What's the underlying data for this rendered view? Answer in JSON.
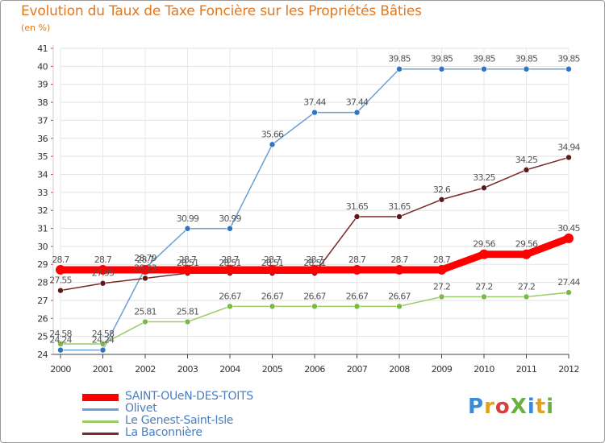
{
  "title": "Evolution du Taux de Taxe Foncière sur les Propriétés Bâties",
  "subtitle": "(en %)",
  "logo": {
    "text": "ProXiti",
    "colors": [
      "#3a8ad8",
      "#e0a020",
      "#d84040",
      "#6ab040",
      "#3a8ad8",
      "#e0a020",
      "#6ab040"
    ]
  },
  "chart_data": {
    "type": "line",
    "x": [
      "2000",
      "2001",
      "2002",
      "2003",
      "2004",
      "2005",
      "2006",
      "2007",
      "2008",
      "2009",
      "2010",
      "2011",
      "2012"
    ],
    "ylim": [
      24,
      41
    ],
    "yticks": [
      24,
      25,
      26,
      27,
      28,
      29,
      30,
      31,
      32,
      33,
      34,
      35,
      36,
      37,
      38,
      39,
      40,
      41
    ],
    "grid": true,
    "series": [
      {
        "name": "SAINT-OUeN-DES-TOITS",
        "color": "#ff0000",
        "emphasis": true,
        "values": [
          28.7,
          28.7,
          28.7,
          28.7,
          28.7,
          28.7,
          28.7,
          28.7,
          28.7,
          28.7,
          29.56,
          29.56,
          30.45
        ],
        "labels": [
          "28.7",
          "28.7",
          "28.7",
          "28.7",
          "28.7",
          "28.7",
          "28.7",
          "28.7",
          "28.7",
          "28.7",
          "29.56",
          "29.56",
          "30.45"
        ]
      },
      {
        "name": "Olivet",
        "color": "#6a9ed4",
        "marker": "#2e74c4",
        "values": [
          24.24,
          24.24,
          28.79,
          30.99,
          30.99,
          35.66,
          37.44,
          37.44,
          39.85,
          39.85,
          39.85,
          39.85,
          39.85
        ],
        "labels": [
          "24.24",
          "24.24",
          "28.79",
          "30.99",
          "30.99",
          "35.66",
          "37.44",
          "37.44",
          "39.85",
          "39.85",
          "39.85",
          "39.85",
          "39.85"
        ]
      },
      {
        "name": "Le Genest-Saint-Isle",
        "color": "#99cc66",
        "marker": "#7ab848",
        "values": [
          24.58,
          24.58,
          25.81,
          25.81,
          26.67,
          26.67,
          26.67,
          26.67,
          26.67,
          27.2,
          27.2,
          27.2,
          27.44
        ],
        "labels": [
          "24.58",
          "24.58",
          "25.81",
          "25.81",
          "26.67",
          "26.67",
          "26.67",
          "26.67",
          "26.67",
          "27.2",
          "27.2",
          "27.2",
          "27.44"
        ]
      },
      {
        "name": "La Baconnière",
        "color": "#7a2a2a",
        "marker": "#5a1a1a",
        "values": [
          27.55,
          27.95,
          28.23,
          28.51,
          28.51,
          28.51,
          28.51,
          31.65,
          31.65,
          32.6,
          33.25,
          34.25,
          34.94
        ],
        "labels": [
          "27.55",
          "27.95",
          "28.23",
          "28.51",
          "28.51",
          "28.51",
          "28.51",
          "31.65",
          "31.65",
          "32.6",
          "33.25",
          "34.25",
          "34.94"
        ]
      }
    ]
  }
}
